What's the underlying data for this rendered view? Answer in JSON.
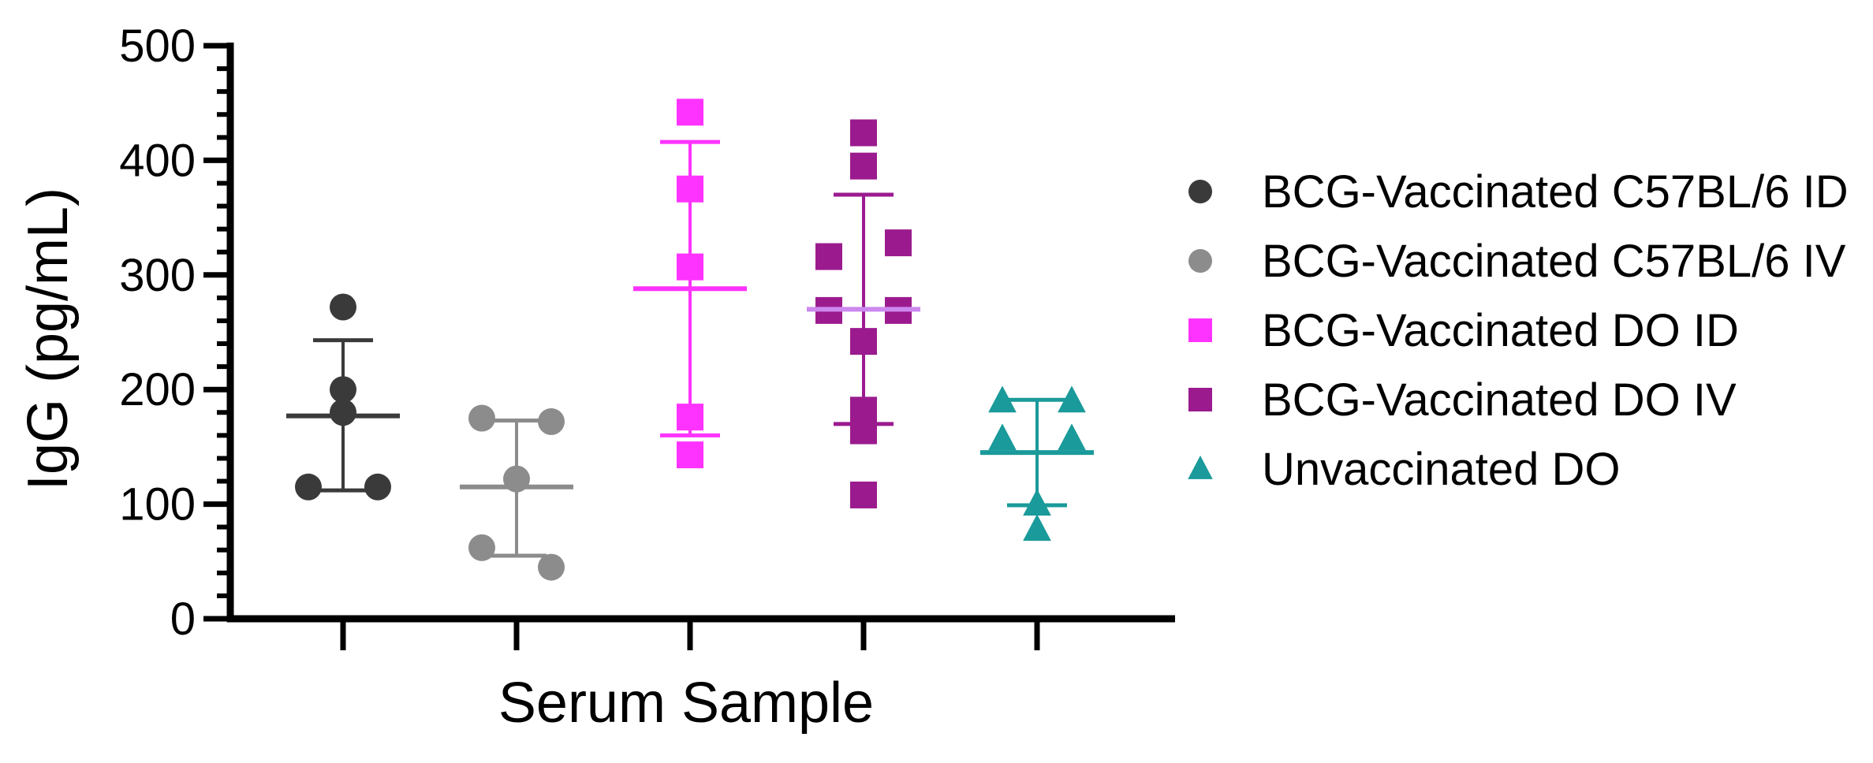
{
  "chart_data": {
    "type": "scatter",
    "xlabel": "Serum Sample",
    "ylabel": "IgG (pg/mL)",
    "ylim": [
      0,
      500
    ],
    "yticks": [
      0,
      100,
      200,
      300,
      400,
      500
    ],
    "y_minor_step": 20,
    "legend_position": "right",
    "series": [
      {
        "name": "BCG-Vaccinated C57BL/6 ID",
        "color": "#3a3a3a",
        "marker": "circle",
        "values": [
          272,
          200,
          180,
          115,
          115
        ],
        "mean": 177,
        "sd_upper": 243,
        "sd_lower": 112
      },
      {
        "name": "BCG-Vaccinated C57BL/6 IV",
        "color": "#8c8c8c",
        "marker": "circle",
        "values": [
          175,
          172,
          122,
          62,
          45
        ],
        "mean": 115,
        "sd_upper": 173,
        "sd_lower": 55
      },
      {
        "name": "BCG-Vaccinated DO ID",
        "color": "#ff33ff",
        "marker": "square",
        "values": [
          442,
          375,
          307,
          176,
          143
        ],
        "mean": 288,
        "sd_upper": 416,
        "sd_lower": 160
      },
      {
        "name": "BCG-Vaccinated DO IV",
        "color": "#9b1b8f",
        "mean_color": "#cc88ee",
        "marker": "square",
        "values": [
          424,
          395,
          316,
          328,
          269,
          269,
          242,
          182,
          164,
          108
        ],
        "mean": 270,
        "sd_upper": 370,
        "sd_lower": 170
      },
      {
        "name": "Unvaccinated DO",
        "color": "#1a9a9a",
        "marker": "triangle",
        "values": [
          190,
          190,
          157,
          157,
          100,
          78
        ],
        "mean": 145,
        "sd_upper": 191,
        "sd_lower": 99
      }
    ]
  }
}
